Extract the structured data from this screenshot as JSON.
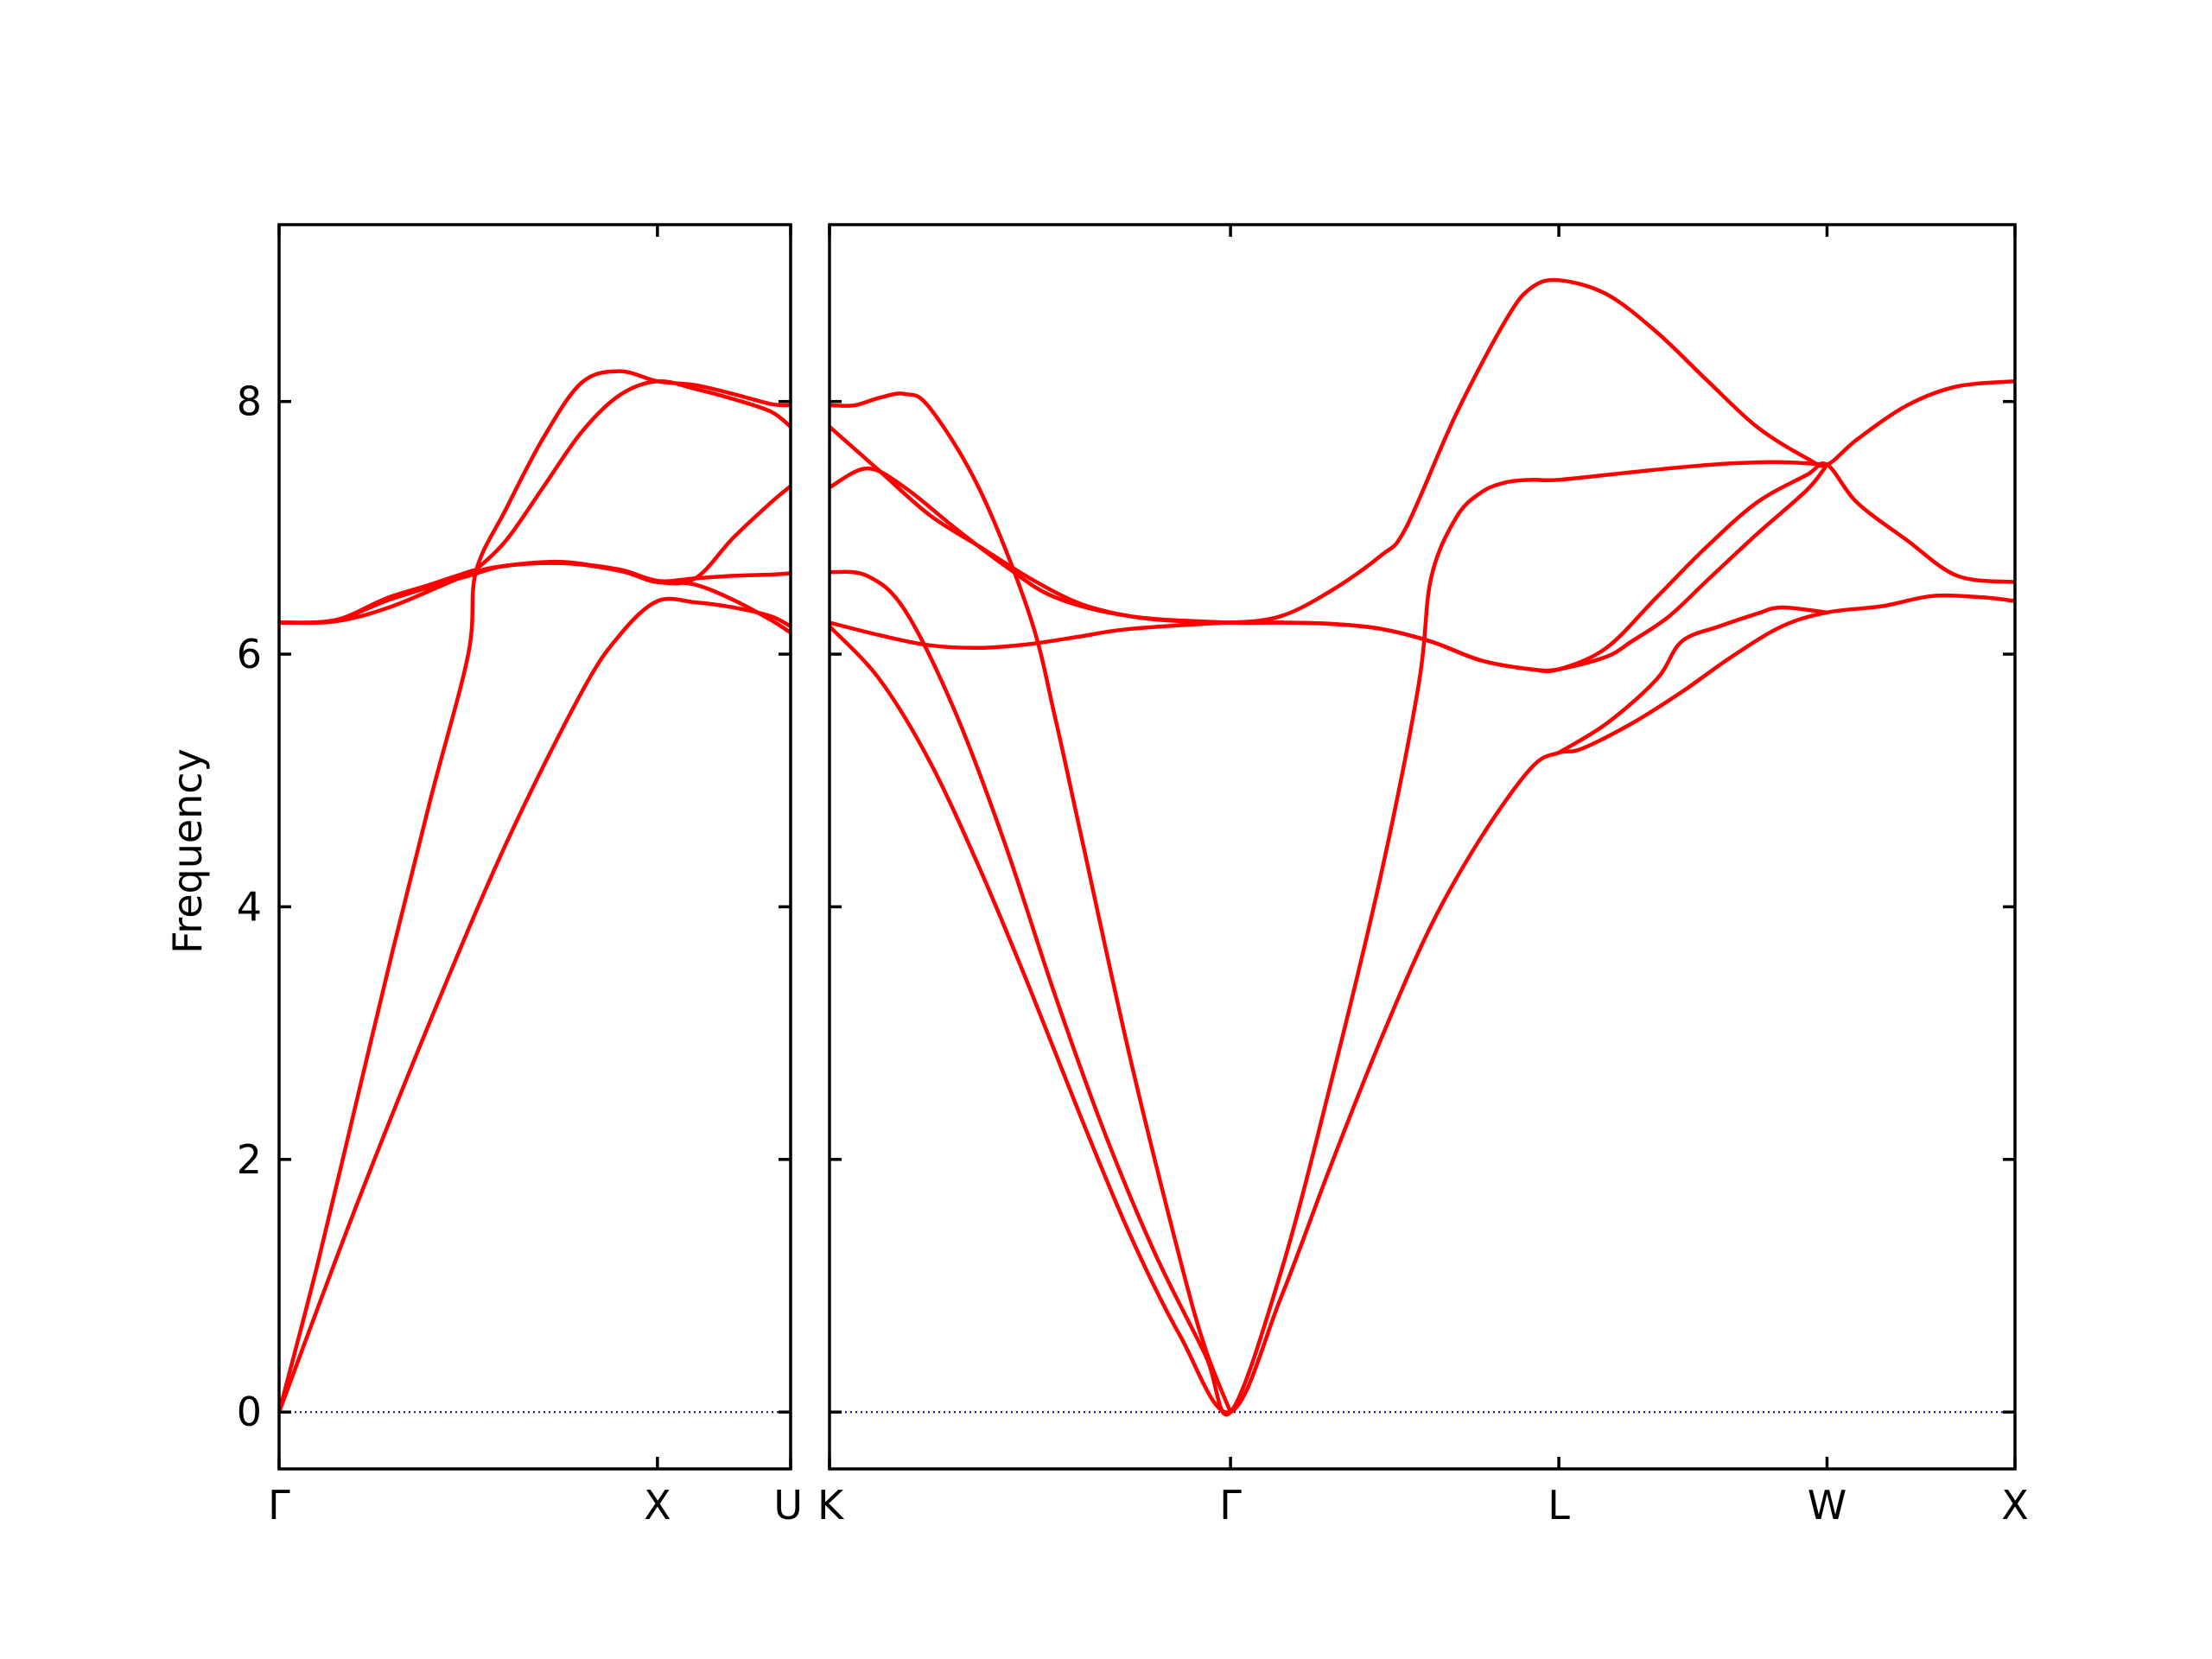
{
  "chart_data": {
    "type": "line",
    "title": "",
    "ylabel": "Frequency",
    "xlabel": "",
    "ylim": [
      -0.45,
      9.4
    ],
    "yticks": [
      0,
      2,
      4,
      6,
      8
    ],
    "grid": false,
    "colors": {
      "band": "#ff0000",
      "zero_line": "#00008b",
      "axis": "#000000"
    },
    "panels": [
      {
        "name": "Γ-X-U",
        "xlim": [
          0,
          1.352
        ],
        "ticks": [
          {
            "x": 0,
            "label": "Γ"
          },
          {
            "x": 1.0,
            "label": "X"
          },
          {
            "x": 1.352,
            "label": "U"
          }
        ],
        "series": [
          {
            "points": [
              [
                0,
                0
              ],
              [
                0.2,
                1.6
              ],
              [
                0.4,
                3.1
              ],
              [
                0.6,
                4.5
              ],
              [
                0.8,
                5.7
              ],
              [
                0.9,
                6.15
              ],
              [
                1.0,
                6.42
              ],
              [
                1.1,
                6.41
              ],
              [
                1.2,
                6.37
              ],
              [
                1.3,
                6.3
              ],
              [
                1.352,
                6.22
              ]
            ]
          },
          {
            "points": [
              [
                0,
                0
              ],
              [
                0.1,
                1.15
              ],
              [
                0.2,
                2.4
              ],
              [
                0.3,
                3.65
              ],
              [
                0.4,
                4.85
              ],
              [
                0.5,
                6.0
              ],
              [
                0.52,
                6.65
              ],
              [
                0.6,
                7.15
              ],
              [
                0.7,
                7.72
              ],
              [
                0.8,
                8.15
              ],
              [
                0.9,
                8.24
              ],
              [
                1.0,
                8.16
              ],
              [
                1.1,
                8.13
              ],
              [
                1.2,
                8.06
              ],
              [
                1.3,
                7.98
              ],
              [
                1.352,
                7.97
              ]
            ]
          },
          {
            "points": [
              [
                0,
                6.25
              ],
              [
                0.15,
                6.27
              ],
              [
                0.3,
                6.45
              ],
              [
                0.5,
                6.65
              ],
              [
                0.52,
                6.67
              ],
              [
                0.6,
                6.9
              ],
              [
                0.7,
                7.33
              ],
              [
                0.8,
                7.76
              ],
              [
                0.9,
                8.05
              ],
              [
                1.0,
                8.16
              ],
              [
                1.1,
                8.1
              ],
              [
                1.2,
                8.02
              ],
              [
                1.3,
                7.92
              ],
              [
                1.352,
                7.8
              ]
            ]
          },
          {
            "points": [
              [
                0,
                6.25
              ],
              [
                0.15,
                6.26
              ],
              [
                0.3,
                6.38
              ],
              [
                0.5,
                6.63
              ],
              [
                0.6,
                6.7
              ],
              [
                0.75,
                6.73
              ],
              [
                0.9,
                6.66
              ],
              [
                1.0,
                6.58
              ],
              [
                1.1,
                6.55
              ],
              [
                1.2,
                6.43
              ],
              [
                1.3,
                6.27
              ],
              [
                1.352,
                6.17
              ]
            ]
          },
          {
            "points": [
              [
                0,
                6.25
              ],
              [
                0.15,
                6.27
              ],
              [
                0.3,
                6.46
              ],
              [
                0.5,
                6.63
              ],
              [
                0.52,
                6.64
              ],
              [
                0.6,
                6.7
              ],
              [
                0.75,
                6.72
              ],
              [
                0.9,
                6.66
              ],
              [
                1.0,
                6.57
              ],
              [
                1.1,
                6.6
              ],
              [
                1.2,
                6.92
              ],
              [
                1.3,
                7.2
              ],
              [
                1.352,
                7.33
              ]
            ]
          },
          {
            "points": [
              [
                0,
                6.25
              ],
              [
                0.15,
                6.27
              ],
              [
                0.3,
                6.44
              ],
              [
                0.5,
                6.62
              ],
              [
                0.6,
                6.7
              ],
              [
                0.75,
                6.72
              ],
              [
                0.9,
                6.67
              ],
              [
                1.0,
                6.58
              ],
              [
                1.1,
                6.6
              ],
              [
                1.2,
                6.62
              ],
              [
                1.3,
                6.63
              ],
              [
                1.352,
                6.64
              ]
            ]
          }
        ]
      },
      {
        "name": "K-Γ-L-W-X",
        "xlim": [
          0,
          4.73
        ],
        "ticks": [
          {
            "x": 0,
            "label": "K"
          },
          {
            "x": 1.6,
            "label": "Γ"
          },
          {
            "x": 2.91,
            "label": "L"
          },
          {
            "x": 3.98,
            "label": "W"
          },
          {
            "x": 4.73,
            "label": "X"
          }
        ],
        "series": [
          {
            "points": [
              [
                0,
                6.22
              ],
              [
                0.2,
                5.8
              ],
              [
                0.4,
                5.15
              ],
              [
                0.6,
                4.3
              ],
              [
                0.8,
                3.35
              ],
              [
                1.0,
                2.35
              ],
              [
                1.2,
                1.4
              ],
              [
                1.4,
                0.6
              ],
              [
                1.6,
                0
              ],
              [
                1.8,
                0.9
              ],
              [
                2.0,
                1.95
              ],
              [
                2.2,
                2.95
              ],
              [
                2.4,
                3.85
              ],
              [
                2.6,
                4.55
              ],
              [
                2.8,
                5.1
              ],
              [
                2.91,
                5.22
              ],
              [
                3.0,
                5.25
              ],
              [
                3.2,
                5.45
              ],
              [
                3.4,
                5.7
              ],
              [
                3.6,
                5.98
              ],
              [
                3.8,
                6.22
              ],
              [
                3.98,
                6.33
              ],
              [
                4.2,
                6.38
              ],
              [
                4.4,
                6.46
              ],
              [
                4.6,
                6.45
              ],
              [
                4.73,
                6.42
              ]
            ]
          },
          {
            "points": [
              [
                0,
                6.65
              ],
              [
                0.15,
                6.62
              ],
              [
                0.3,
                6.35
              ],
              [
                0.5,
                5.55
              ],
              [
                0.7,
                4.5
              ],
              [
                0.9,
                3.3
              ],
              [
                1.1,
                2.2
              ],
              [
                1.3,
                1.25
              ],
              [
                1.5,
                0.45
              ],
              [
                1.6,
                0
              ],
              [
                1.8,
                1.1
              ],
              [
                2.0,
                2.6
              ],
              [
                2.2,
                4.25
              ],
              [
                2.35,
                5.75
              ],
              [
                2.4,
                6.6
              ],
              [
                2.5,
                7.08
              ],
              [
                2.6,
                7.28
              ],
              [
                2.7,
                7.36
              ],
              [
                2.8,
                7.38
              ],
              [
                2.91,
                7.38
              ],
              [
                3.2,
                7.44
              ],
              [
                3.4,
                7.48
              ],
              [
                3.6,
                7.51
              ],
              [
                3.8,
                7.52
              ],
              [
                3.98,
                7.5
              ]
            ]
          },
          {
            "points": [
              [
                0,
                7.97
              ],
              [
                0.1,
                7.97
              ],
              [
                0.2,
                8.03
              ],
              [
                0.3,
                8.06
              ],
              [
                0.4,
                7.95
              ],
              [
                0.6,
                7.3
              ],
              [
                0.8,
                6.3
              ],
              [
                0.9,
                5.5
              ],
              [
                1.0,
                4.6
              ],
              [
                1.2,
                2.8
              ],
              [
                1.4,
                1.2
              ],
              [
                1.5,
                0.5
              ],
              [
                1.6,
                0
              ]
            ]
          },
          {
            "points": [
              [
                0,
                7.8
              ],
              [
                0.2,
                7.45
              ],
              [
                0.4,
                7.1
              ],
              [
                0.6,
                6.85
              ],
              [
                0.8,
                6.6
              ],
              [
                1.0,
                6.4
              ],
              [
                1.2,
                6.3
              ],
              [
                1.4,
                6.26
              ],
              [
                1.6,
                6.25
              ],
              [
                1.8,
                6.3
              ],
              [
                2.0,
                6.5
              ],
              [
                2.2,
                6.78
              ],
              [
                2.3,
                7.0
              ],
              [
                2.5,
                7.9
              ],
              [
                2.7,
                8.65
              ],
              [
                2.8,
                8.9
              ],
              [
                2.91,
                8.96
              ],
              [
                3.1,
                8.85
              ],
              [
                3.3,
                8.55
              ],
              [
                3.5,
                8.17
              ],
              [
                3.7,
                7.8
              ],
              [
                3.9,
                7.55
              ],
              [
                3.98,
                7.5
              ],
              [
                4.1,
                7.7
              ],
              [
                4.3,
                7.97
              ],
              [
                4.5,
                8.12
              ],
              [
                4.73,
                8.16
              ]
            ]
          },
          {
            "points": [
              [
                0,
                7.32
              ],
              [
                0.15,
                7.47
              ],
              [
                0.3,
                7.32
              ],
              [
                0.5,
                7.0
              ],
              [
                0.7,
                6.7
              ],
              [
                0.9,
                6.45
              ],
              [
                1.2,
                6.3
              ],
              [
                1.6,
                6.25
              ],
              [
                1.8,
                6.25
              ],
              [
                2.0,
                6.24
              ],
              [
                2.2,
                6.2
              ],
              [
                2.4,
                6.1
              ],
              [
                2.6,
                5.95
              ],
              [
                2.8,
                5.88
              ],
              [
                2.91,
                5.88
              ],
              [
                3.1,
                6.05
              ],
              [
                3.3,
                6.45
              ],
              [
                3.5,
                6.85
              ],
              [
                3.7,
                7.2
              ],
              [
                3.9,
                7.42
              ],
              [
                3.98,
                7.5
              ],
              [
                4.1,
                7.2
              ],
              [
                4.3,
                6.9
              ],
              [
                4.5,
                6.62
              ],
              [
                4.73,
                6.57
              ]
            ]
          },
          {
            "points": [
              [
                0,
                6.25
              ],
              [
                0.2,
                6.15
              ],
              [
                0.4,
                6.07
              ],
              [
                0.6,
                6.05
              ],
              [
                0.8,
                6.08
              ],
              [
                1.0,
                6.14
              ],
              [
                1.2,
                6.2
              ],
              [
                1.6,
                6.25
              ],
              [
                1.8,
                6.25
              ],
              [
                2.0,
                6.24
              ],
              [
                2.2,
                6.2
              ],
              [
                2.4,
                6.1
              ],
              [
                2.6,
                5.95
              ],
              [
                2.8,
                5.88
              ],
              [
                2.91,
                5.88
              ],
              [
                3.1,
                5.98
              ],
              [
                3.2,
                6.1
              ],
              [
                3.35,
                6.3
              ],
              [
                3.5,
                6.58
              ],
              [
                3.7,
                6.95
              ],
              [
                3.9,
                7.3
              ],
              [
                3.98,
                7.5
              ]
            ]
          },
          {
            "points": [
              [
                2.91,
                5.22
              ],
              [
                3.1,
                5.45
              ],
              [
                3.3,
                5.8
              ],
              [
                3.4,
                6.1
              ],
              [
                3.55,
                6.22
              ],
              [
                3.7,
                6.32
              ],
              [
                3.8,
                6.37
              ],
              [
                3.98,
                6.33
              ]
            ]
          }
        ]
      }
    ]
  }
}
